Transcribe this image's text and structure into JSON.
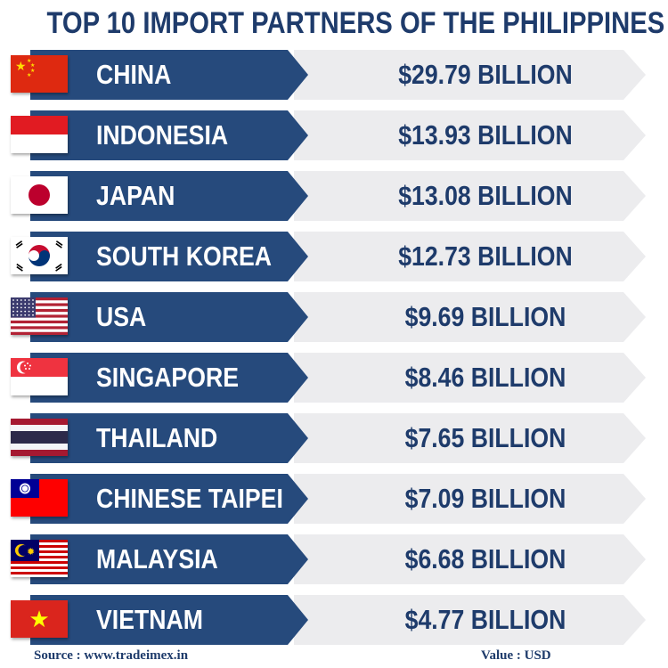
{
  "chart_data": {
    "type": "bar",
    "title": "TOP 10 IMPORT PARTNERS OF THE PHILIPPINES",
    "categories": [
      "CHINA",
      "INDONESIA",
      "JAPAN",
      "SOUTH KOREA",
      "USA",
      "SINGAPORE",
      "THAILAND",
      "CHINESE TAIPEI",
      "MALAYSIA",
      "VIETNAM"
    ],
    "values": [
      29.79,
      13.93,
      13.08,
      12.73,
      9.69,
      8.46,
      7.65,
      7.09,
      6.68,
      4.77
    ],
    "value_labels": [
      "$29.79 BILLION",
      "$13.93 BILLION",
      "$13.08 BILLION",
      "$12.73 BILLION",
      "$9.69 BILLION",
      "$8.46 BILLION",
      "$7.65 BILLION",
      "$7.09 BILLION",
      "$6.68 BILLION",
      "$4.77 BILLION"
    ],
    "flags": [
      "china-flag-icon",
      "indonesia-flag-icon",
      "japan-flag-icon",
      "south-korea-flag-icon",
      "usa-flag-icon",
      "singapore-flag-icon",
      "thailand-flag-icon",
      "chinese-taipei-flag-icon",
      "malaysia-flag-icon",
      "vietnam-flag-icon"
    ],
    "colors": {
      "ribbon": "#264a7c",
      "value_bg": "#ececee",
      "text_dark": "#1e3b6b"
    }
  },
  "footer": {
    "source": "Source : www.tradeimex.in",
    "unit": "Value : USD"
  }
}
